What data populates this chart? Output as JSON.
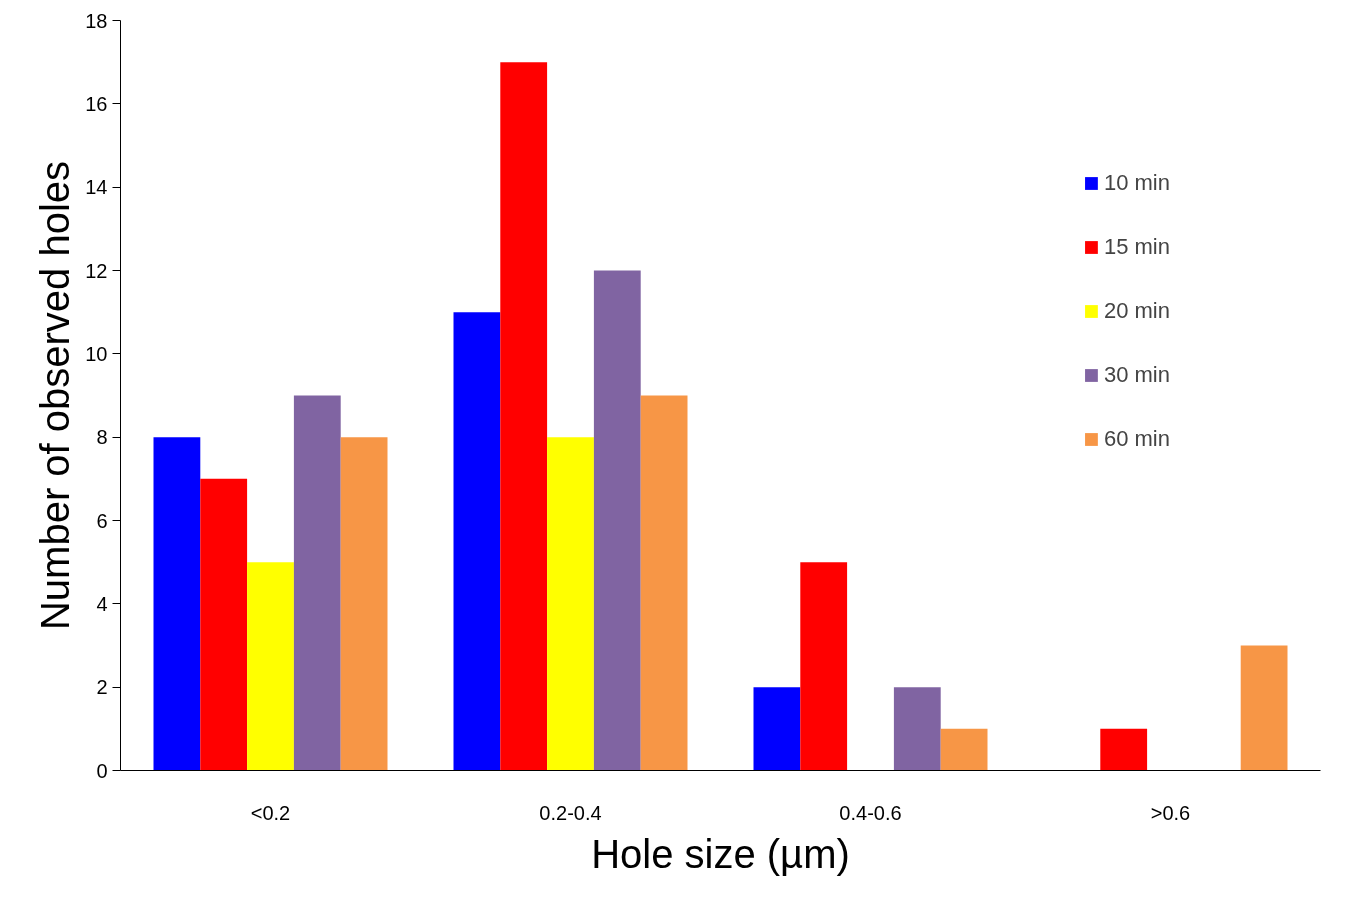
{
  "chart_data": {
    "type": "bar",
    "xlabel": "Hole size (µm)",
    "ylabel": "Number of observed holes",
    "categories": [
      "<0.2",
      "0.2-0.4",
      "0.4-0.6",
      ">0.6"
    ],
    "series": [
      {
        "name": "10 min",
        "color": "#0000ff",
        "values": [
          8,
          11,
          2,
          0
        ]
      },
      {
        "name": "15 min",
        "color": "#ff0000",
        "values": [
          7,
          17,
          5,
          1
        ]
      },
      {
        "name": "20 min",
        "color": "#ffff00",
        "values": [
          5,
          8,
          0,
          0
        ]
      },
      {
        "name": "30 min",
        "color": "#8064a2",
        "values": [
          9,
          12,
          2,
          0
        ]
      },
      {
        "name": "60 min",
        "color": "#f79646",
        "values": [
          8,
          9,
          1,
          3
        ]
      }
    ],
    "ylim": [
      0,
      18
    ],
    "yticks": [
      0,
      2,
      4,
      6,
      8,
      10,
      12,
      14,
      16,
      18
    ],
    "grid": false,
    "legend": "top right"
  }
}
